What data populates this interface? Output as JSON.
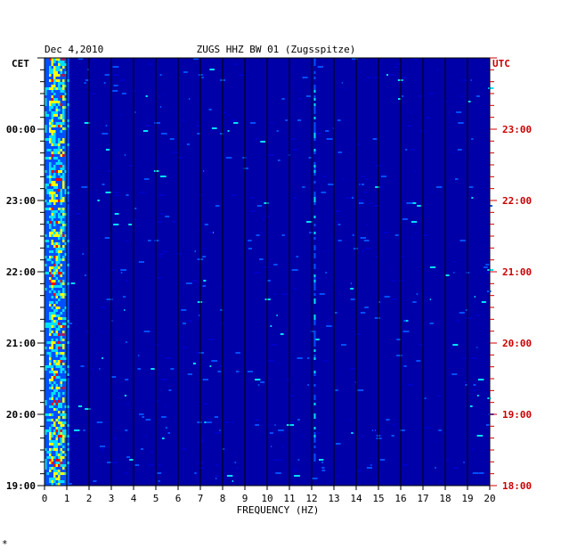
{
  "chart_data": {
    "type": "heatmap",
    "date": "Dec 4,2010",
    "title": "ZUGS HHZ BW 01 (Zugsspitze)",
    "left_axis_label": "CET",
    "right_axis_label": "UTC",
    "xlabel": "FREQUENCY (HZ)",
    "xlim": [
      0,
      20
    ],
    "x_ticks": [
      "0",
      "1",
      "2",
      "3",
      "4",
      "5",
      "6",
      "7",
      "8",
      "9",
      "10",
      "11",
      "12",
      "13",
      "14",
      "15",
      "16",
      "17",
      "18",
      "19",
      "20"
    ],
    "cet_ticks": [
      "00:00",
      "23:00",
      "22:00",
      "21:00",
      "20:00",
      "19:00"
    ],
    "utc_ticks": [
      "23:00",
      "22:00",
      "21:00",
      "20:00",
      "19:00",
      "18:00"
    ],
    "colors": {
      "background": "#0000a8",
      "low": "#0000c8",
      "mid": "#0050ff",
      "high": "#00e0ff",
      "peak": "#ffff00",
      "max": "#ff0000",
      "utc_text": "#cc0000"
    },
    "strong_band_hz": [
      0.2,
      0.8
    ],
    "persistent_lines_hz": [
      12.1
    ]
  },
  "footer_mark": "*"
}
